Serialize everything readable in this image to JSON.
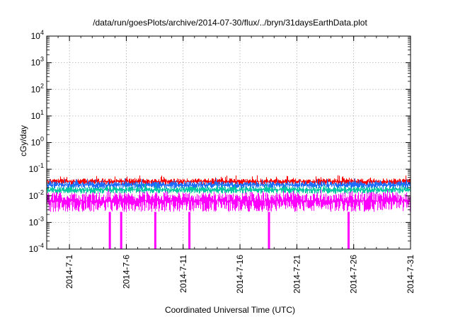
{
  "chart_data": {
    "type": "area",
    "title": "/data/run/goesPlots/archive/2014-07-30/flux/../bryn/31daysEarthData.plot",
    "xlabel": "Coordinated Universal Time (UTC)",
    "ylabel": "cGy/day",
    "yscale": "log",
    "ylim": [
      0.0001,
      10000
    ],
    "xlim": [
      "2014-06-29",
      "2014-07-31"
    ],
    "x_ticks": [
      "2014-7-1",
      "2014-7-6",
      "2014-7-11",
      "2014-7-16",
      "2014-7-21",
      "2014-7-26",
      "2014-7-31"
    ],
    "y_ticks": [
      {
        "value": 0.0001,
        "base": "10",
        "exp": "-4"
      },
      {
        "value": 0.001,
        "base": "10",
        "exp": "-3"
      },
      {
        "value": 0.01,
        "base": "10",
        "exp": "-2"
      },
      {
        "value": 0.1,
        "base": "10",
        "exp": "-1"
      },
      {
        "value": 1,
        "base": "10",
        "exp": "0"
      },
      {
        "value": 10,
        "base": "10",
        "exp": "1"
      },
      {
        "value": 100,
        "base": "10",
        "exp": "2"
      },
      {
        "value": 1000,
        "base": "10",
        "exp": "3"
      },
      {
        "value": 10000,
        "base": "10",
        "exp": "4"
      }
    ],
    "grid": true,
    "series": [
      {
        "color": "#ff0000",
        "range": [
          0.025,
          0.045
        ]
      },
      {
        "color": "#1e6cff",
        "range": [
          0.018,
          0.035
        ]
      },
      {
        "color": "#00c8a0",
        "range": [
          0.012,
          0.022
        ]
      },
      {
        "color": "#ff00ff",
        "range": [
          0.0025,
          0.014
        ]
      }
    ],
    "dips": [
      {
        "date": "2014-07-04",
        "value": 0.0001
      },
      {
        "date": "2014-07-05",
        "value": 0.0001
      },
      {
        "date": "2014-07-08",
        "value": 0.0001
      },
      {
        "date": "2014-07-11",
        "value": 0.0001
      },
      {
        "date": "2014-07-18",
        "value": 0.0001
      },
      {
        "date": "2014-07-25",
        "value": 0.0001
      }
    ]
  }
}
